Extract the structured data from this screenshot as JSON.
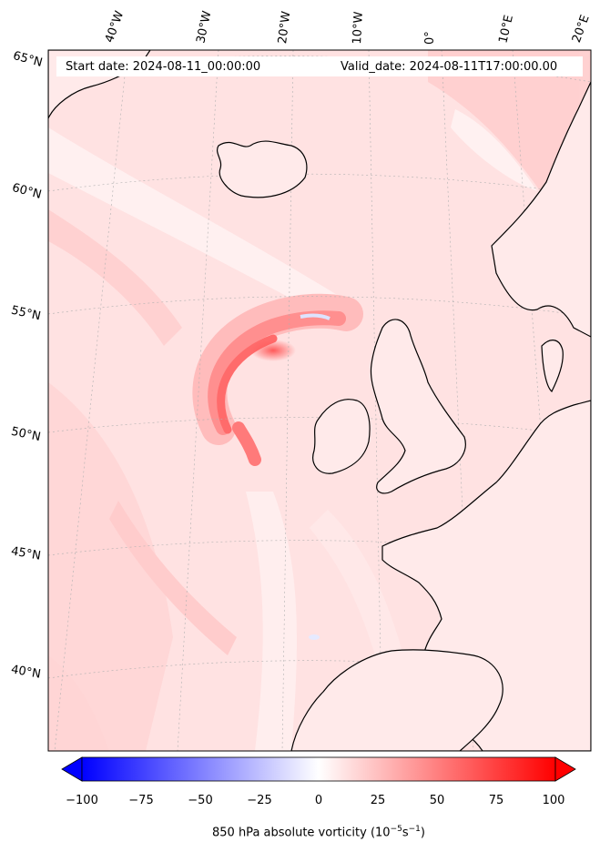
{
  "map": {
    "start_date": "Start date: 2024-08-11_00:00:00",
    "valid_date": "Valid_date: 2024-08-11T17:00:00.00",
    "projection": "conic",
    "region": "North Atlantic and Western Europe",
    "lon_ticks": [
      "40°W",
      "30°W",
      "20°W",
      "10°W",
      "0°",
      "10°E",
      "20°E"
    ],
    "lat_ticks": [
      "65°N",
      "60°N",
      "55°N",
      "50°N",
      "45°N",
      "40°N"
    ],
    "gridlines": "dotted",
    "colors": {
      "positive": "#ff0000",
      "negative": "#0000ff",
      "neutral": "#ffffff",
      "coastline": "#000000"
    }
  },
  "colorbar": {
    "ticks": [
      "−100",
      "−75",
      "−50",
      "−25",
      "0",
      "25",
      "50",
      "75",
      "100"
    ],
    "range": [
      -100,
      100
    ],
    "extend": "both",
    "label": "850 hPa absolute vorticity (10",
    "label_exp1": "−5",
    "label_mid": "s",
    "label_exp2": "−1",
    "label_end": ")"
  }
}
